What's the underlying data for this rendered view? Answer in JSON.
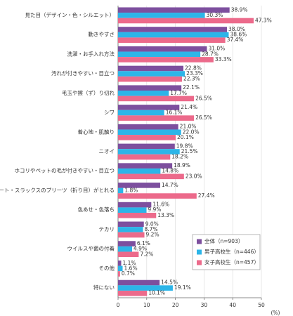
{
  "chart_data": {
    "type": "barh",
    "categories": [
      "見た目（デザイン・色・シルエット）",
      "動きやすさ",
      "洗濯・お手入れ方法",
      "汚れが付きやすい・目立つ",
      "毛玉や擦（ず）り切れ",
      "シワ",
      "着心地・肌触り",
      "ニオイ",
      "ホコリやペットの毛が付きやすい・目立つ",
      "スカート・スラックスのプリーツ（折り目）がとれる",
      "色あせ・色落ち",
      "テカリ",
      "ウイルスや菌の付着",
      "その他",
      "特にない"
    ],
    "series": [
      {
        "name": "全体（n=903）",
        "color": "#7d4f9e",
        "values": [
          38.9,
          38.0,
          31.0,
          22.8,
          22.1,
          21.4,
          21.0,
          19.8,
          18.9,
          14.7,
          11.6,
          9.0,
          6.1,
          1.1,
          14.5
        ],
        "value_labels": [
          "38.9%",
          "38.0%",
          "31.0%",
          "22.8%",
          "22.1%",
          "21.4%",
          "21.0%",
          "19.8%",
          "18.9%",
          "14.7%",
          "11.6%",
          "9.0%",
          "6.1%",
          "1.1%",
          "14.5%"
        ]
      },
      {
        "name": "男子高校生（n=446）",
        "color": "#2cb5e8",
        "values": [
          30.3,
          38.6,
          28.7,
          23.3,
          17.7,
          16.1,
          22.0,
          21.5,
          14.8,
          1.8,
          9.9,
          8.7,
          4.9,
          1.6,
          19.1
        ],
        "value_labels": [
          "30.3%",
          "38.6%",
          "28.7%",
          "23.3%",
          "17.7%",
          "16.1%",
          "22.0%",
          "21.5%",
          "14.8%",
          "1.8%",
          "9.9%",
          "8.7%",
          "4.9%",
          "1.6%",
          "19.1%"
        ]
      },
      {
        "name": "女子高校生（n=457）",
        "color": "#ec6a8b",
        "values": [
          47.3,
          37.4,
          33.3,
          22.3,
          26.5,
          26.5,
          20.1,
          18.2,
          23.0,
          27.4,
          13.3,
          9.2,
          7.2,
          0.7,
          10.1
        ],
        "value_labels": [
          "47.3%",
          "37.4%",
          "33.3%",
          "22.3%",
          "26.5%",
          "26.5%",
          "20.1%",
          "18.2%",
          "23.0%",
          "27.4%",
          "13.3%",
          "9.2%",
          "7.2%",
          "0.7%",
          "10.1%"
        ]
      }
    ],
    "xlim": [
      0,
      50
    ],
    "xticks": [
      0,
      10,
      20,
      30,
      40,
      50
    ],
    "xlabel": "(%)",
    "grid": true,
    "legend": "lower right"
  }
}
